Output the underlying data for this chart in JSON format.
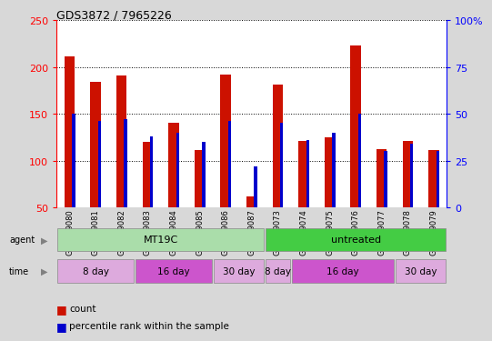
{
  "title": "GDS3872 / 7965226",
  "samples": [
    "GSM579080",
    "GSM579081",
    "GSM579082",
    "GSM579083",
    "GSM579084",
    "GSM579085",
    "GSM579086",
    "GSM579087",
    "GSM579073",
    "GSM579074",
    "GSM579075",
    "GSM579076",
    "GSM579077",
    "GSM579078",
    "GSM579079"
  ],
  "counts": [
    212,
    184,
    191,
    120,
    140,
    111,
    192,
    62,
    181,
    121,
    125,
    223,
    112,
    121,
    111
  ],
  "percentile_ranks": [
    50,
    46,
    47,
    38,
    40,
    35,
    46,
    22,
    45,
    36,
    40,
    50,
    30,
    34,
    30
  ],
  "ylim_left": [
    50,
    250
  ],
  "ylim_right": [
    0,
    100
  ],
  "yticks_left": [
    50,
    100,
    150,
    200,
    250
  ],
  "yticks_right": [
    0,
    25,
    50,
    75,
    100
  ],
  "bar_color": "#cc1100",
  "pct_color": "#0000cc",
  "bg_color": "#ffffff",
  "agent_labels": [
    {
      "label": "MT19C",
      "start": 0,
      "end": 8,
      "color": "#aaddaa"
    },
    {
      "label": "untreated",
      "start": 8,
      "end": 15,
      "color": "#44cc44"
    }
  ],
  "time_labels": [
    {
      "label": "8 day",
      "start": 0,
      "end": 3,
      "color": "#ddaadd"
    },
    {
      "label": "16 day",
      "start": 3,
      "end": 6,
      "color": "#cc55cc"
    },
    {
      "label": "30 day",
      "start": 6,
      "end": 8,
      "color": "#ddaadd"
    },
    {
      "label": "8 day",
      "start": 8,
      "end": 9,
      "color": "#ddaadd"
    },
    {
      "label": "16 day",
      "start": 9,
      "end": 13,
      "color": "#cc55cc"
    },
    {
      "label": "30 day",
      "start": 13,
      "end": 15,
      "color": "#ddaadd"
    }
  ],
  "legend_count_label": "count",
  "legend_pct_label": "percentile rank within the sample",
  "red_bar_width": 0.4,
  "blue_bar_width": 0.12
}
